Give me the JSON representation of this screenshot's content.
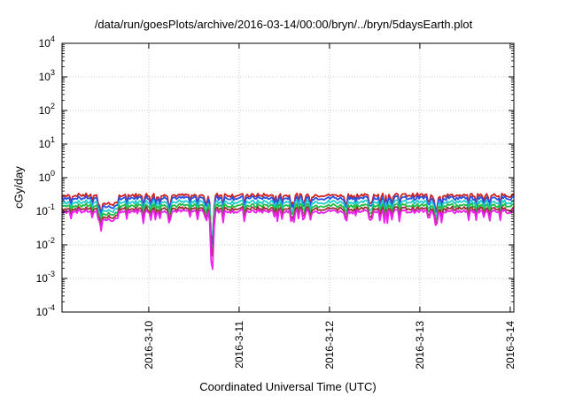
{
  "chart_data": {
    "type": "line",
    "title": "/data/run/goesPlots/archive/2016-03-14/00:00/bryn/../bryn/5daysEarth.plot",
    "xlabel": "Coordinated Universal Time (UTC)",
    "ylabel": "cGy/day",
    "y_scale": "log",
    "ylim": [
      0.0001,
      10000
    ],
    "y_ticks": [
      {
        "value": 0.0001,
        "base": "10",
        "exp": "-4"
      },
      {
        "value": 0.001,
        "base": "10",
        "exp": "-3"
      },
      {
        "value": 0.01,
        "base": "10",
        "exp": "-2"
      },
      {
        "value": 0.1,
        "base": "10",
        "exp": "-1"
      },
      {
        "value": 1,
        "base": "10",
        "exp": "0"
      },
      {
        "value": 10,
        "base": "10",
        "exp": "1"
      },
      {
        "value": 100,
        "base": "10",
        "exp": "2"
      },
      {
        "value": 1000,
        "base": "10",
        "exp": "3"
      },
      {
        "value": 10000,
        "base": "10",
        "exp": "4"
      }
    ],
    "xlim": [
      "2016-03-09 01:00",
      "2016-03-14 01:00"
    ],
    "x_ticks": [
      "2016-3-10",
      "2016-3-11",
      "2016-3-12",
      "2016-3-13",
      "2016-3-14"
    ],
    "x_tick_days": [
      1,
      2,
      3,
      4,
      5
    ],
    "x_range_days": [
      0.04,
      5.04
    ],
    "grid": true,
    "series": [
      {
        "color": "#cc2222",
        "base": 0.3,
        "dip": 0.006
      },
      {
        "color": "#2a52e0",
        "base": 0.25,
        "dip": 0.004
      },
      {
        "color": "#22cccc",
        "base": 0.19,
        "dip": 0.01
      },
      {
        "color": "#22bb44",
        "base": 0.15,
        "dip": 0.0025
      },
      {
        "color": "#993333",
        "base": 0.12,
        "dip": 0.0018
      },
      {
        "color": "#ee22ee",
        "base": 0.1,
        "dip": 0.0006
      }
    ],
    "events": [
      {
        "day": 1.7,
        "min": 0.0006,
        "note": "deep dip near 2016-03-10 17:00"
      },
      {
        "day": 4.18,
        "min": 0.035,
        "note": "dip near 2016-03-13 04:00"
      }
    ]
  }
}
